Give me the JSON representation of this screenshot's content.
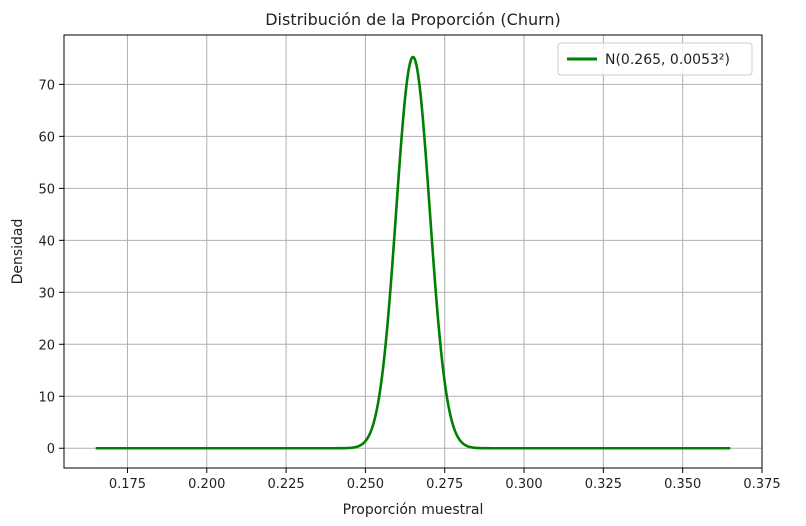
{
  "chart_data": {
    "type": "line",
    "title": "Distribución de la Proporción (Churn)",
    "xlabel": "Proporción muestral",
    "ylabel": "Densidad",
    "xlim": [
      0.155,
      0.375
    ],
    "ylim": [
      -3.8,
      79.5
    ],
    "xticks": [
      0.175,
      0.2,
      0.225,
      0.25,
      0.275,
      0.3,
      0.325,
      0.35,
      0.375
    ],
    "xtick_labels": [
      "0.175",
      "0.200",
      "0.225",
      "0.250",
      "0.275",
      "0.300",
      "0.325",
      "0.350",
      "0.375"
    ],
    "yticks": [
      0,
      10,
      20,
      30,
      40,
      50,
      60,
      70
    ],
    "ytick_labels": [
      "0",
      "10",
      "20",
      "30",
      "40",
      "50",
      "60",
      "70"
    ],
    "grid": true,
    "legend": "top-right",
    "series": [
      {
        "name": "N(0.265, 0.0053²)",
        "color": "#008000",
        "distribution": "normal",
        "mean": 0.265,
        "std": 0.0053,
        "x_range": [
          0.165,
          0.365
        ]
      }
    ]
  }
}
